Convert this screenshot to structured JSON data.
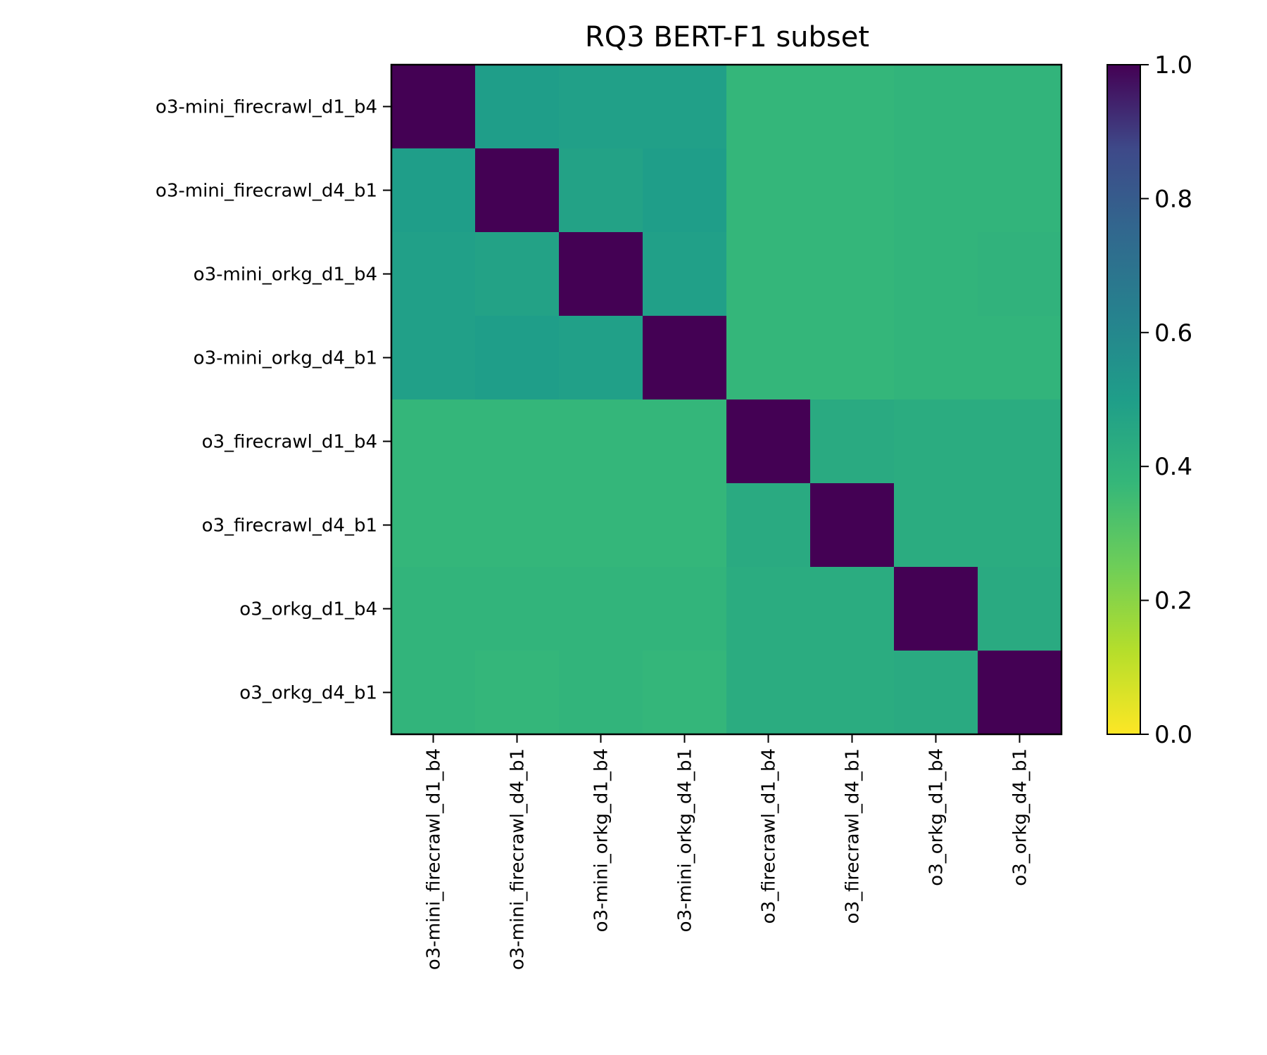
{
  "chart_data": {
    "type": "heatmap",
    "title": "RQ3 BERT-F1 subset",
    "xlabel": "",
    "ylabel": "",
    "rows": [
      "o3-mini_firecrawl_d1_b4",
      "o3-mini_firecrawl_d4_b1",
      "o3-mini_orkg_d1_b4",
      "o3-mini_orkg_d4_b1",
      "o3_firecrawl_d1_b4",
      "o3_firecrawl_d4_b1",
      "o3_orkg_d1_b4",
      "o3_orkg_d4_b1"
    ],
    "columns": [
      "o3-mini_firecrawl_d1_b4",
      "o3-mini_firecrawl_d4_b1",
      "o3-mini_orkg_d1_b4",
      "o3-mini_orkg_d4_b1",
      "o3_firecrawl_d1_b4",
      "o3_firecrawl_d4_b1",
      "o3_orkg_d1_b4",
      "o3_orkg_d4_b1"
    ],
    "values": [
      [
        1.0,
        0.5,
        0.49,
        0.49,
        0.38,
        0.38,
        0.39,
        0.39
      ],
      [
        0.5,
        1.0,
        0.48,
        0.5,
        0.38,
        0.38,
        0.39,
        0.39
      ],
      [
        0.49,
        0.48,
        1.0,
        0.49,
        0.38,
        0.38,
        0.39,
        0.4
      ],
      [
        0.49,
        0.5,
        0.49,
        1.0,
        0.38,
        0.38,
        0.39,
        0.39
      ],
      [
        0.38,
        0.38,
        0.38,
        0.38,
        1.0,
        0.44,
        0.43,
        0.43
      ],
      [
        0.38,
        0.38,
        0.38,
        0.38,
        0.44,
        1.0,
        0.43,
        0.43
      ],
      [
        0.39,
        0.39,
        0.39,
        0.39,
        0.43,
        0.43,
        1.0,
        0.44
      ],
      [
        0.39,
        0.38,
        0.39,
        0.38,
        0.43,
        0.43,
        0.44,
        1.0
      ]
    ],
    "vmin": 0.0,
    "vmax": 1.0,
    "colormap": "viridis_r",
    "colorbar_ticks": [
      "0.0",
      "0.2",
      "0.4",
      "0.6",
      "0.8",
      "1.0"
    ],
    "colorbar_tick_values": [
      0.0,
      0.2,
      0.4,
      0.6,
      0.8,
      1.0
    ],
    "grid": false
  }
}
